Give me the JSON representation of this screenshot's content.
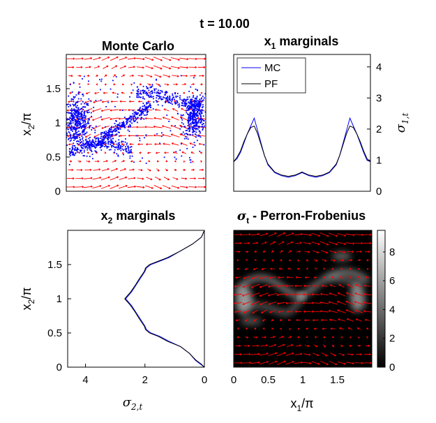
{
  "figure": {
    "title": "t = 10.00"
  },
  "chart_data": [
    {
      "id": "mc",
      "type": "scatter",
      "title": "Monte Carlo",
      "ylabel_base": "x",
      "ylabel_sub": "2",
      "ylabel_tail": "/π",
      "xlim": [
        0,
        2
      ],
      "ylim": [
        0,
        2
      ],
      "yticks": [
        0,
        0.5,
        1,
        1.5
      ],
      "ytick_labels": [
        "0",
        "0.5",
        "1",
        "1.5"
      ],
      "point_color": "#0000ff",
      "arrow_color": "#ff0000"
    },
    {
      "id": "x1m",
      "type": "line",
      "title_base": "x",
      "title_sub": "1",
      "title_tail": " marginals",
      "ylabel_base": "σ",
      "ylabel_sub": "1,t",
      "xlim": [
        0,
        2
      ],
      "ylim": [
        0,
        4.4
      ],
      "yticks": [
        0,
        1,
        2,
        3,
        4
      ],
      "ytick_labels": [
        "0",
        "1",
        "2",
        "3",
        "4"
      ],
      "legend_position": "top-left",
      "series": [
        {
          "name": "MC",
          "color": "#0000ff",
          "x": [
            0,
            0.05,
            0.1,
            0.15,
            0.2,
            0.25,
            0.3,
            0.35,
            0.4,
            0.45,
            0.5,
            0.6,
            0.7,
            0.8,
            0.9,
            1.0,
            1.1,
            1.2,
            1.3,
            1.4,
            1.5,
            1.55,
            1.6,
            1.65,
            1.7,
            1.75,
            1.8,
            1.85,
            1.9,
            1.95,
            2.0
          ],
          "y": [
            0.95,
            1.05,
            1.25,
            1.55,
            1.85,
            2.1,
            2.35,
            1.95,
            1.55,
            1.15,
            0.85,
            0.6,
            0.5,
            0.45,
            0.5,
            0.6,
            0.5,
            0.45,
            0.5,
            0.6,
            0.85,
            1.15,
            1.55,
            1.95,
            2.35,
            2.1,
            1.85,
            1.55,
            1.25,
            1.0,
            0.95
          ]
        },
        {
          "name": "PF",
          "color": "#000000",
          "x": [
            0,
            0.05,
            0.1,
            0.15,
            0.2,
            0.25,
            0.3,
            0.35,
            0.4,
            0.45,
            0.5,
            0.6,
            0.7,
            0.8,
            0.9,
            1.0,
            1.1,
            1.2,
            1.3,
            1.4,
            1.5,
            1.55,
            1.6,
            1.65,
            1.7,
            1.75,
            1.8,
            1.85,
            1.9,
            1.95,
            2.0
          ],
          "y": [
            0.95,
            1.1,
            1.3,
            1.6,
            1.85,
            2.05,
            2.1,
            1.85,
            1.5,
            1.15,
            0.88,
            0.62,
            0.52,
            0.48,
            0.52,
            0.62,
            0.52,
            0.48,
            0.52,
            0.62,
            0.88,
            1.15,
            1.5,
            1.85,
            2.1,
            2.05,
            1.85,
            1.6,
            1.3,
            1.05,
            0.95
          ]
        }
      ]
    },
    {
      "id": "x2m",
      "type": "line",
      "title_base": "x",
      "title_sub": "2",
      "title_tail": " marginals",
      "xlabel_base": "σ",
      "xlabel_sub": "2,t",
      "ylabel_base": "x",
      "ylabel_sub": "2",
      "ylabel_tail": "/π",
      "xlim": [
        4.6,
        0
      ],
      "ylim": [
        0,
        2
      ],
      "xticks": [
        4,
        2,
        0
      ],
      "xtick_labels": [
        "4",
        "2",
        "0"
      ],
      "yticks": [
        0,
        0.5,
        1,
        1.5
      ],
      "ytick_labels": [
        "0",
        "0.5",
        "1",
        "1.5"
      ],
      "series": [
        {
          "name": "MC",
          "color": "#0000ff",
          "y": [
            0,
            0.05,
            0.1,
            0.2,
            0.3,
            0.38,
            0.45,
            0.5,
            0.55,
            0.6,
            0.7,
            0.8,
            0.9,
            1.0,
            1.1,
            1.2,
            1.3,
            1.4,
            1.45,
            1.5,
            1.55,
            1.6,
            1.7,
            1.8,
            1.9,
            2.0
          ],
          "x": [
            0,
            0.15,
            0.3,
            0.5,
            0.8,
            1.2,
            1.5,
            1.8,
            1.95,
            2.0,
            2.15,
            2.3,
            2.45,
            2.65,
            2.45,
            2.3,
            2.15,
            2.0,
            1.95,
            1.8,
            1.5,
            1.2,
            0.8,
            0.4,
            0.1,
            0
          ]
        },
        {
          "name": "PF",
          "color": "#000000",
          "y": [
            0,
            0.05,
            0.1,
            0.2,
            0.3,
            0.38,
            0.45,
            0.5,
            0.55,
            0.6,
            0.7,
            0.8,
            0.9,
            1.0,
            1.1,
            1.2,
            1.3,
            1.4,
            1.45,
            1.5,
            1.55,
            1.6,
            1.7,
            1.8,
            1.9,
            2.0
          ],
          "x": [
            0,
            0.12,
            0.28,
            0.5,
            0.8,
            1.25,
            1.55,
            1.85,
            1.98,
            2.02,
            2.18,
            2.32,
            2.48,
            2.68,
            2.48,
            2.32,
            2.18,
            2.02,
            1.98,
            1.85,
            1.55,
            1.25,
            0.8,
            0.4,
            0.1,
            0
          ]
        }
      ]
    },
    {
      "id": "pf",
      "type": "heatmap",
      "title_base": "σ",
      "title_sub": "t",
      "title_tail": " - Perron-Frobenius",
      "xlabel_base": "x",
      "xlabel_sub": "1",
      "xlabel_tail": "/π",
      "xlim": [
        0,
        2
      ],
      "ylim": [
        0,
        2
      ],
      "xticks": [
        0,
        0.5,
        1,
        1.5
      ],
      "xtick_labels": [
        "0",
        "0.5",
        "1",
        "1.5"
      ],
      "colorbar_range": [
        0,
        9.5
      ],
      "colorbar_ticks": [
        0,
        2,
        4,
        6,
        8
      ],
      "colorbar_tick_labels": [
        "0",
        "2",
        "4",
        "6",
        "8"
      ],
      "arrow_color": "#ff0000"
    }
  ]
}
